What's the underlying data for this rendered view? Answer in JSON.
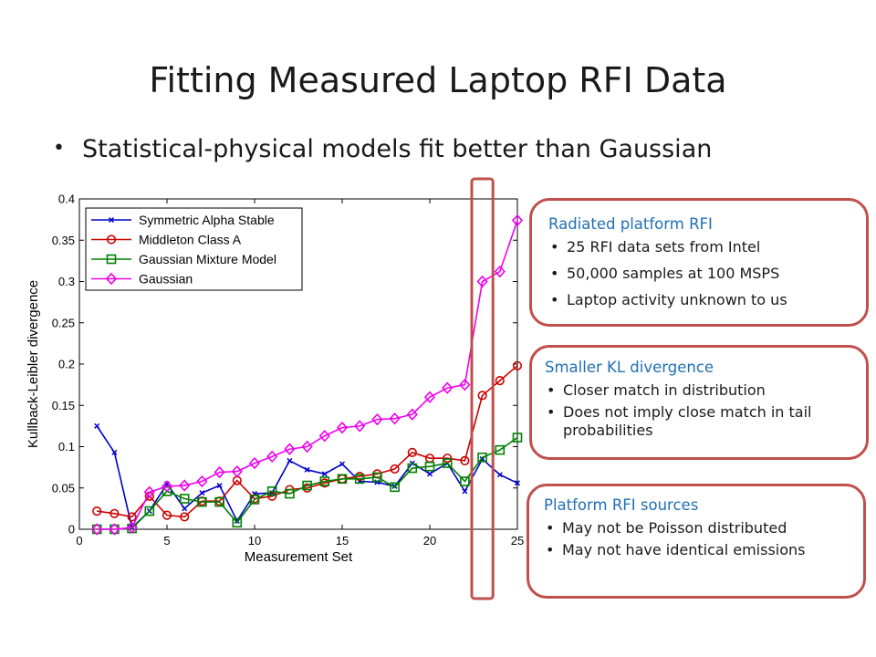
{
  "slide": {
    "title": "Fitting Measured Laptop RFI Data",
    "bullet": "Statistical-physical models fit better than Gaussian"
  },
  "colors": {
    "callout_border": "#c0504d",
    "callout_heading": "#1f6fb4",
    "highlight": "#c0504d"
  },
  "callouts": [
    {
      "heading": "Radiated platform RFI",
      "items": [
        "25 RFI data sets from Intel",
        "50,000 samples at 100 MSPS",
        "Laptop activity unknown to us"
      ]
    },
    {
      "heading": "Smaller KL divergence",
      "items": [
        "Closer match in distribution",
        "Does not imply close match in tail probabilities"
      ]
    },
    {
      "heading": "Platform RFI sources",
      "items": [
        "May not be Poisson distributed",
        "May not have identical emissions"
      ]
    }
  ],
  "chart_data": {
    "type": "line",
    "xlabel": "Measurement Set",
    "ylabel": "Kullback-Leibler divergence",
    "xlim": [
      0,
      25
    ],
    "ylim": [
      0,
      0.4
    ],
    "xticks": [
      0,
      5,
      10,
      15,
      20,
      25
    ],
    "yticks": [
      0,
      0.05,
      0.1,
      0.15,
      0.2,
      0.25,
      0.3,
      0.35,
      0.4
    ],
    "grid": false,
    "legend_position": "top-left",
    "highlight_x_range": [
      22.5,
      23.5
    ],
    "x": [
      1,
      2,
      3,
      4,
      5,
      6,
      7,
      8,
      9,
      10,
      11,
      12,
      13,
      14,
      15,
      16,
      17,
      18,
      19,
      20,
      21,
      22,
      23,
      24,
      25
    ],
    "series": [
      {
        "name": "Symmetric Alpha Stable",
        "color": "#0000cc",
        "marker": "x",
        "values": [
          0.125,
          0.093,
          0.002,
          0.022,
          0.055,
          0.025,
          0.044,
          0.053,
          0.01,
          0.043,
          0.044,
          0.083,
          0.072,
          0.067,
          0.079,
          0.058,
          0.057,
          0.052,
          0.08,
          0.067,
          0.08,
          0.046,
          0.085,
          0.066,
          0.056
        ]
      },
      {
        "name": "Middleton Class A",
        "color": "#cc0000",
        "marker": "circle",
        "values": [
          0.022,
          0.019,
          0.015,
          0.04,
          0.017,
          0.015,
          0.034,
          0.034,
          0.059,
          0.037,
          0.04,
          0.048,
          0.05,
          0.056,
          0.061,
          0.064,
          0.067,
          0.073,
          0.093,
          0.086,
          0.086,
          0.083,
          0.162,
          0.18,
          0.198
        ]
      },
      {
        "name": "Gaussian Mixture Model",
        "color": "#008000",
        "marker": "square",
        "values": [
          0.0,
          0.0,
          0.001,
          0.022,
          0.046,
          0.037,
          0.033,
          0.033,
          0.008,
          0.036,
          0.046,
          0.043,
          0.053,
          0.058,
          0.061,
          0.061,
          0.063,
          0.051,
          0.074,
          0.076,
          0.08,
          0.058,
          0.087,
          0.096,
          0.111
        ]
      },
      {
        "name": "Gaussian",
        "color": "#ee00ee",
        "marker": "diamond",
        "values": [
          0.0,
          0.0,
          0.002,
          0.045,
          0.052,
          0.053,
          0.058,
          0.069,
          0.07,
          0.08,
          0.088,
          0.097,
          0.1,
          0.113,
          0.123,
          0.125,
          0.133,
          0.134,
          0.139,
          0.16,
          0.171,
          0.175,
          0.3,
          0.312,
          0.374
        ]
      }
    ]
  }
}
